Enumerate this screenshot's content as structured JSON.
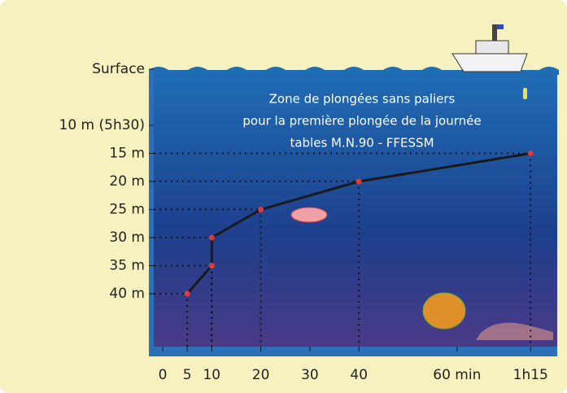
{
  "chart_data": {
    "type": "line",
    "title": [
      "Zone de plongées sans paliers",
      "pour la première plongée de la journée",
      "tables M.N.90 - FFESSM"
    ],
    "x": [
      5,
      10,
      10,
      20,
      40,
      75
    ],
    "series": [
      {
        "color": "#1a1a1a",
        "marker_color": "#e03a3a",
        "values": [
          40,
          35,
          30,
          25,
          20,
          15
        ]
      }
    ],
    "xlim": [
      0,
      80
    ],
    "xticks": [
      0,
      5,
      10,
      20,
      30,
      40,
      {
        "value": 60,
        "label": "60 min"
      },
      {
        "value": 75,
        "label": "1h15"
      }
    ],
    "ylim": [
      0,
      48
    ],
    "y_inverted": true,
    "yticks": [
      {
        "value": 0,
        "label": "Surface"
      },
      {
        "value": 10,
        "label": "10 m (5h30)"
      },
      {
        "value": 15,
        "label": "15 m"
      },
      {
        "value": 20,
        "label": "20 m"
      },
      {
        "value": 25,
        "label": "25 m"
      },
      {
        "value": 30,
        "label": "30 m"
      },
      {
        "value": 35,
        "label": "35 m"
      },
      {
        "value": 40,
        "label": "40 m"
      }
    ],
    "guide_lines": true
  }
}
